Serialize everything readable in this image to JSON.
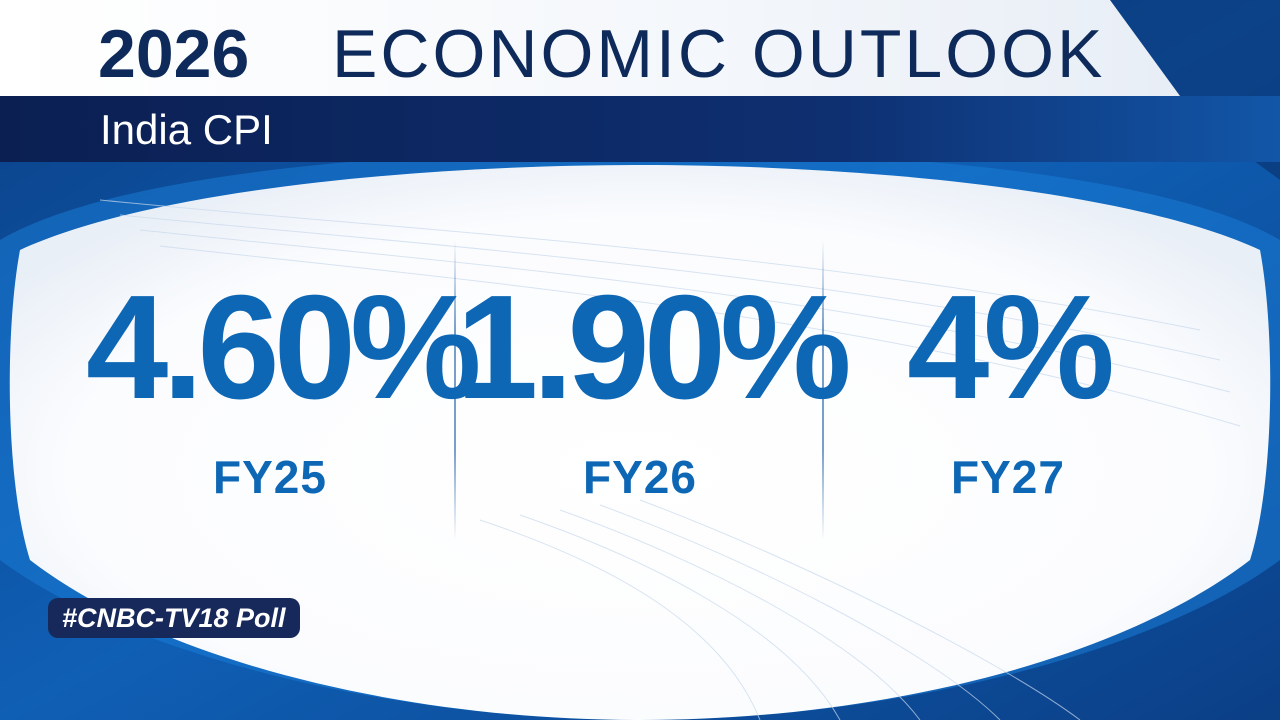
{
  "header": {
    "year": "2026",
    "title": "ECONOMIC OUTLOOK",
    "subtitle": "India CPI"
  },
  "chart_data": {
    "type": "table",
    "title": "India CPI",
    "categories": [
      "FY25",
      "FY26",
      "FY27"
    ],
    "values": [
      4.6,
      1.9,
      4
    ],
    "display": [
      "4.60%",
      "1.90%",
      "4%"
    ]
  },
  "stats": [
    {
      "value": "4.60%",
      "label": "FY25"
    },
    {
      "value": "1.90%",
      "label": "FY26"
    },
    {
      "value": "4%",
      "label": "FY27"
    }
  ],
  "footer": {
    "tag": "#CNBC-TV18 Poll"
  },
  "colors": {
    "dark_navy": "#0e2a5a",
    "value_blue": "#0d67b5",
    "tag_bg": "#17295a"
  }
}
